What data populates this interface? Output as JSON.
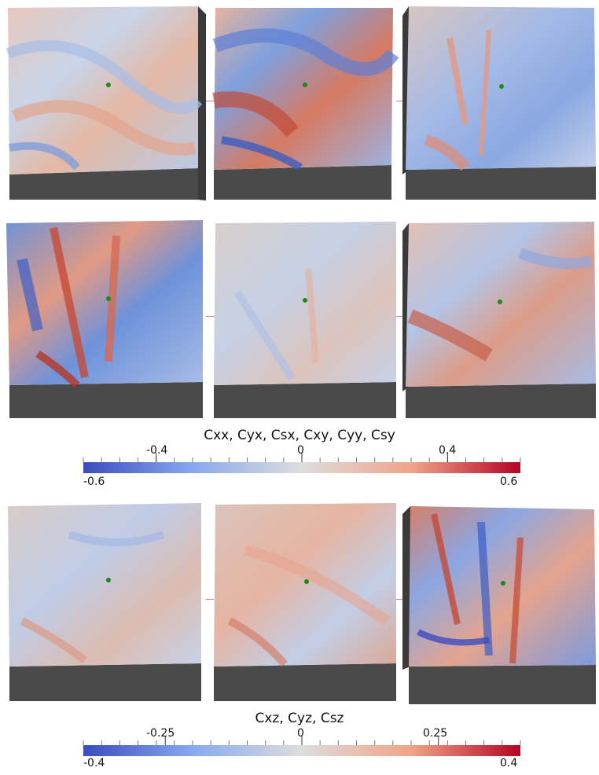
{
  "rows": [
    {
      "id": "row-1",
      "panels": [
        "panel-1-1",
        "panel-1-2",
        "panel-1-3"
      ]
    },
    {
      "id": "row-2",
      "panels": [
        "panel-2-1",
        "panel-2-2",
        "panel-2-3"
      ]
    },
    {
      "id": "row-3",
      "panels": [
        "panel-3-1",
        "panel-3-2",
        "panel-3-3"
      ]
    }
  ],
  "colorbars": [
    {
      "title": "Cxx, Cyx, Csx, Cxy, Cyy, Csy",
      "min_label": "-0.6",
      "max_label": "0.6",
      "ticks": [
        "-0.4",
        "0",
        "0.4"
      ],
      "range": [
        -0.6,
        0.6
      ],
      "tick_values": [
        -0.4,
        0,
        0.4
      ]
    },
    {
      "title": "Cxz, Cyz, Csz",
      "min_label": "-0.4",
      "max_label": "0.4",
      "ticks": [
        "-0.25",
        "0",
        "0.25"
      ],
      "range": [
        -0.4,
        0.4
      ],
      "tick_values": [
        -0.25,
        0,
        0.25
      ]
    }
  ],
  "colors": {
    "cold": "#3b4cc0",
    "mid": "#dddddd",
    "hot": "#b40426",
    "box_side": "#4a4a4a",
    "marker": "#1a8a1a"
  }
}
